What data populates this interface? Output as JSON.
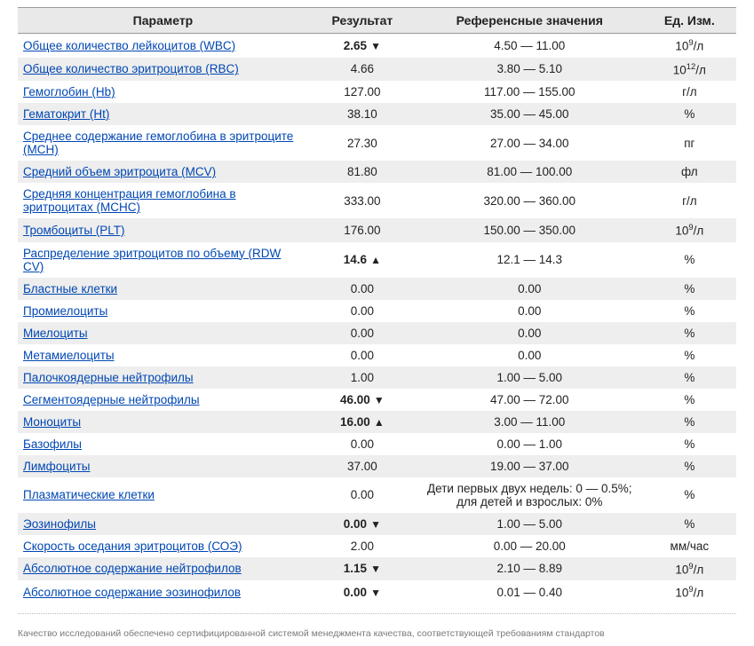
{
  "headers": {
    "param": "Параметр",
    "result": "Результат",
    "ref": "Референсные значения",
    "unit": "Ед. Изм."
  },
  "units": {
    "e9l": "10^9/л",
    "e12l": "10^12/л",
    "gl": "г/л",
    "pct": "%",
    "pg": "пг",
    "fl": "фл",
    "mmch": "мм/час"
  },
  "rows": [
    {
      "param": "Общее количество лейкоцитов (WBC)",
      "link": true,
      "result": "2.65",
      "flag": "down",
      "ref": "4.50 — 11.00",
      "unit": "e9l"
    },
    {
      "param": "Общее количество эритроцитов (RBC)",
      "link": true,
      "result": "4.66",
      "flag": "",
      "ref": "3.80 — 5.10",
      "unit": "e12l"
    },
    {
      "param": "Гемоглобин (Hb)",
      "link": true,
      "result": "127.00",
      "flag": "",
      "ref": "117.00 — 155.00",
      "unit": "gl"
    },
    {
      "param": "Гематокрит (Ht)",
      "link": true,
      "result": "38.10",
      "flag": "",
      "ref": "35.00 — 45.00",
      "unit": "pct"
    },
    {
      "param": "Среднее содержание гемоглобина в эритроците (MCH)",
      "link": true,
      "result": "27.30",
      "flag": "",
      "ref": "27.00 — 34.00",
      "unit": "pg"
    },
    {
      "param": "Средний объем эритроцита (MCV)",
      "link": true,
      "result": "81.80",
      "flag": "",
      "ref": "81.00 — 100.00",
      "unit": "fl"
    },
    {
      "param": "Средняя концентрация гемоглобина в эритроцитах (MCHC)",
      "link": true,
      "result": "333.00",
      "flag": "",
      "ref": "320.00 — 360.00",
      "unit": "gl"
    },
    {
      "param": "Тромбоциты (PLT)",
      "link": true,
      "result": "176.00",
      "flag": "",
      "ref": "150.00 — 350.00",
      "unit": "e9l"
    },
    {
      "param": "Распределение эритроцитов по объему (RDW CV)",
      "link": true,
      "result": "14.6",
      "flag": "up",
      "ref": "12.1 — 14.3",
      "unit": "pct"
    },
    {
      "param": "Бластные клетки",
      "link": true,
      "result": "0.00",
      "flag": "",
      "ref": "0.00",
      "unit": "pct"
    },
    {
      "param": "Промиелоциты",
      "link": true,
      "result": "0.00",
      "flag": "",
      "ref": "0.00",
      "unit": "pct"
    },
    {
      "param": "Миелоциты",
      "link": true,
      "result": "0.00",
      "flag": "",
      "ref": "0.00",
      "unit": "pct"
    },
    {
      "param": "Метамиелоциты",
      "link": true,
      "result": "0.00",
      "flag": "",
      "ref": "0.00",
      "unit": "pct"
    },
    {
      "param": "Палочкоядерные нейтрофилы",
      "link": true,
      "result": "1.00",
      "flag": "",
      "ref": "1.00 — 5.00",
      "unit": "pct"
    },
    {
      "param": "Сегментоядерные нейтрофилы",
      "link": true,
      "result": "46.00",
      "flag": "down",
      "ref": "47.00 — 72.00",
      "unit": "pct"
    },
    {
      "param": "Моноциты",
      "link": true,
      "result": "16.00",
      "flag": "up",
      "ref": "3.00 — 11.00",
      "unit": "pct"
    },
    {
      "param": "Базофилы",
      "link": true,
      "result": "0.00",
      "flag": "",
      "ref": "0.00 — 1.00",
      "unit": "pct"
    },
    {
      "param": "Лимфоциты",
      "link": true,
      "result": "37.00",
      "flag": "",
      "ref": "19.00 — 37.00",
      "unit": "pct"
    },
    {
      "param": "Плазматические клетки",
      "link": true,
      "result": "0.00",
      "flag": "",
      "ref": "Дети первых двух недель: 0 — 0.5%;\nдля детей и взрослых: 0%",
      "unit": "pct"
    },
    {
      "param": "Эозинофилы",
      "link": true,
      "result": "0.00",
      "flag": "down",
      "ref": "1.00 — 5.00",
      "unit": "pct"
    },
    {
      "param": "Скорость оседания эритроцитов (СОЭ)",
      "link": true,
      "result": "2.00",
      "flag": "",
      "ref": "0.00 — 20.00",
      "unit": "mmch"
    },
    {
      "param": "Абсолютное содержание нейтрофилов",
      "link": true,
      "result": "1.15",
      "flag": "down",
      "ref": "2.10 — 8.89",
      "unit": "e9l"
    },
    {
      "param": "Абсолютное содержание эозинофилов",
      "link": true,
      "result": "0.00",
      "flag": "down",
      "ref": "0.01 — 0.40",
      "unit": "e9l"
    }
  ],
  "footer": "Качество исследований обеспечено сертифицированной системой менеджмента качества, соответствующей требованиям стандартов",
  "style": {
    "header_bg": "#e9e9e9",
    "row_alt_bg": "#eeeeee",
    "link_color": "#0047b3",
    "border_color": "#999999"
  }
}
